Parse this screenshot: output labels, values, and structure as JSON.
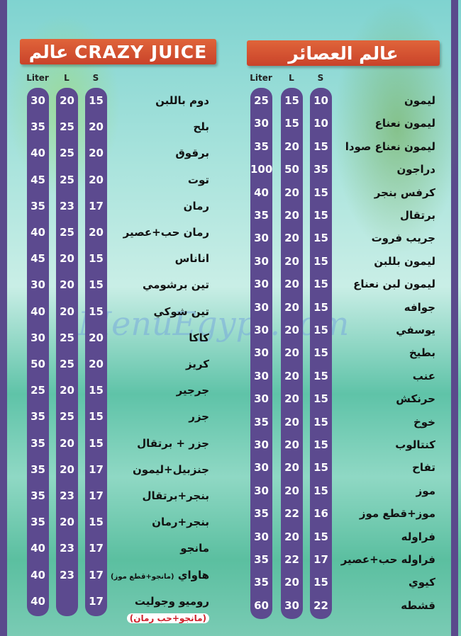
{
  "left_section": {
    "title": "عالم CRAZY JUICE",
    "headers": [
      "Liter",
      "L",
      "S"
    ],
    "items": [
      {
        "name": "دوم باللبن",
        "liter": "30",
        "l": "20",
        "s": "15"
      },
      {
        "name": "بلح",
        "liter": "35",
        "l": "25",
        "s": "20"
      },
      {
        "name": "برقوق",
        "liter": "40",
        "l": "25",
        "s": "20"
      },
      {
        "name": "توت",
        "liter": "45",
        "l": "25",
        "s": "20"
      },
      {
        "name": "رمان",
        "liter": "35",
        "l": "23",
        "s": "17"
      },
      {
        "name": "رمان حب+عصير",
        "liter": "40",
        "l": "25",
        "s": "20"
      },
      {
        "name": "اناناس",
        "liter": "45",
        "l": "20",
        "s": "15"
      },
      {
        "name": "تين برشومي",
        "liter": "30",
        "l": "20",
        "s": "15"
      },
      {
        "name": "تين شوكي",
        "liter": "40",
        "l": "20",
        "s": "15"
      },
      {
        "name": "كاكا",
        "liter": "30",
        "l": "25",
        "s": "20"
      },
      {
        "name": "كريز",
        "liter": "50",
        "l": "25",
        "s": "20"
      },
      {
        "name": "جرجير",
        "liter": "25",
        "l": "20",
        "s": "15"
      },
      {
        "name": "جزر",
        "liter": "35",
        "l": "25",
        "s": "15"
      },
      {
        "name": "جزر + برتقال",
        "liter": "35",
        "l": "20",
        "s": "15"
      },
      {
        "name": "جنزبيل+ليمون",
        "liter": "35",
        "l": "20",
        "s": "17"
      },
      {
        "name": "بنجر+برتقال",
        "liter": "35",
        "l": "23",
        "s": "17"
      },
      {
        "name": "بنجر+رمان",
        "liter": "35",
        "l": "20",
        "s": "15"
      },
      {
        "name": "مانجو",
        "liter": "40",
        "l": "23",
        "s": "17"
      },
      {
        "name": "هاواي",
        "note": "(مانجو+قطع موز)",
        "liter": "40",
        "l": "23",
        "s": "17"
      },
      {
        "name": "روميو وجوليت",
        "liter": "40",
        "l": "",
        "s": "17"
      }
    ],
    "footnote": "(مانجو+حب رمان)"
  },
  "right_section": {
    "title": "عالم العصائر",
    "headers": [
      "Liter",
      "L",
      "S"
    ],
    "items": [
      {
        "name": "ليمون",
        "liter": "25",
        "l": "15",
        "s": "10"
      },
      {
        "name": "ليمون نعناع",
        "liter": "30",
        "l": "15",
        "s": "10"
      },
      {
        "name": "ليمون نعناع صودا",
        "liter": "35",
        "l": "20",
        "s": "15"
      },
      {
        "name": "دراجون",
        "liter": "100",
        "l": "50",
        "s": "35"
      },
      {
        "name": "كرفس بنجر",
        "liter": "40",
        "l": "20",
        "s": "15"
      },
      {
        "name": "برتقال",
        "liter": "35",
        "l": "20",
        "s": "15"
      },
      {
        "name": "جريب فروت",
        "liter": "30",
        "l": "20",
        "s": "15"
      },
      {
        "name": "ليمون بللبن",
        "liter": "30",
        "l": "20",
        "s": "15"
      },
      {
        "name": "ليمون لبن نعناع",
        "liter": "30",
        "l": "20",
        "s": "15"
      },
      {
        "name": "جوافه",
        "liter": "30",
        "l": "20",
        "s": "15"
      },
      {
        "name": "يوسفي",
        "liter": "30",
        "l": "20",
        "s": "15"
      },
      {
        "name": "بطيخ",
        "liter": "30",
        "l": "20",
        "s": "15"
      },
      {
        "name": "عنب",
        "liter": "30",
        "l": "20",
        "s": "15"
      },
      {
        "name": "حرنكش",
        "liter": "30",
        "l": "20",
        "s": "15"
      },
      {
        "name": "خوخ",
        "liter": "35",
        "l": "20",
        "s": "15"
      },
      {
        "name": "كنتالوب",
        "liter": "30",
        "l": "20",
        "s": "15"
      },
      {
        "name": "تفاح",
        "liter": "30",
        "l": "20",
        "s": "15"
      },
      {
        "name": "موز",
        "liter": "30",
        "l": "20",
        "s": "15"
      },
      {
        "name": "موز+قطع موز",
        "liter": "35",
        "l": "22",
        "s": "16"
      },
      {
        "name": "فراوله",
        "liter": "30",
        "l": "20",
        "s": "15"
      },
      {
        "name": "فراوله حب+عصير",
        "liter": "35",
        "l": "22",
        "s": "17"
      },
      {
        "name": "كيوي",
        "liter": "35",
        "l": "20",
        "s": "15"
      },
      {
        "name": "قشطه",
        "liter": "60",
        "l": "30",
        "s": "22"
      }
    ]
  },
  "watermark": "MenuEgypt.com",
  "colors": {
    "pill": "#5c4a8f",
    "banner": "#d4502f",
    "footnote": "#d0202a"
  }
}
